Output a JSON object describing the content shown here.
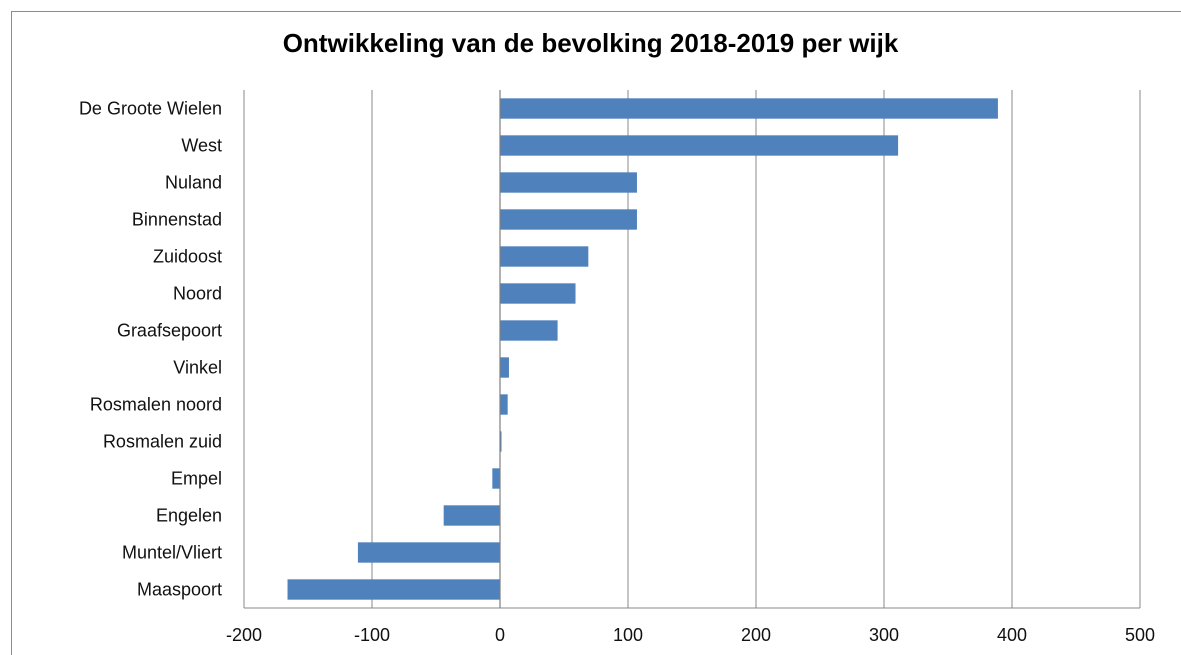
{
  "chart_data": {
    "type": "bar",
    "orientation": "horizontal",
    "title": "Ontwikkeling van de bevolking 2018-2019 per wijk",
    "xlabel": "",
    "ylabel": "",
    "categories": [
      "De Groote Wielen",
      "West",
      "Nuland",
      "Binnenstad",
      "Zuidoost",
      "Noord",
      "Graafsepoort",
      "Vinkel",
      "Rosmalen noord",
      "Rosmalen zuid",
      "Empel",
      "Engelen",
      "Muntel/Vliert",
      "Maaspoort"
    ],
    "values": [
      389,
      311,
      107,
      107,
      69,
      59,
      45,
      7,
      6,
      1,
      -6,
      -44,
      -111,
      -166
    ],
    "xlim": [
      -200,
      500
    ],
    "xticks": [
      "-200",
      "-100",
      "0",
      "100",
      "200",
      "300",
      "400",
      "500"
    ],
    "grid": "vertical",
    "legend": "none",
    "bar_color": "#4f81bd",
    "grid_color": "#888888"
  }
}
